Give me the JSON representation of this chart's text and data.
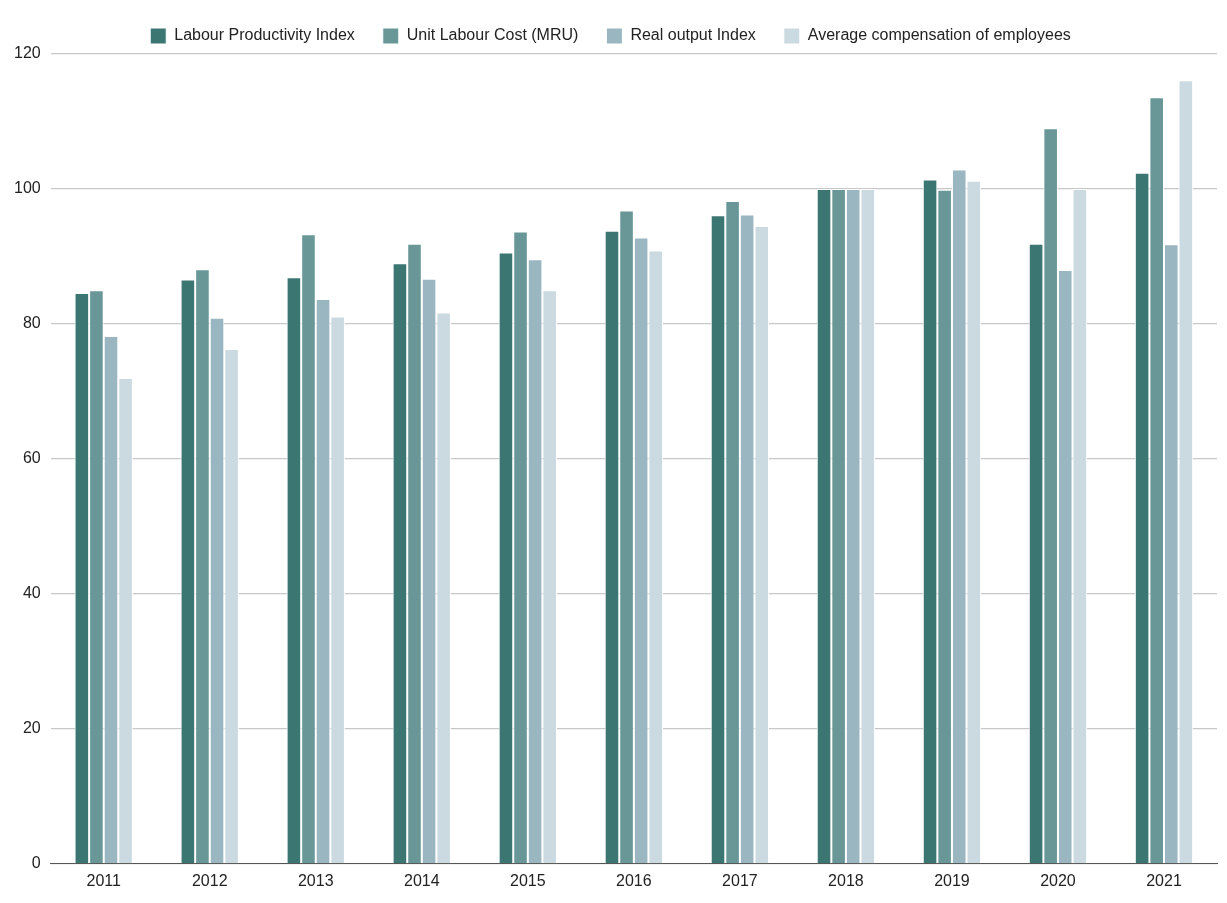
{
  "chart_data": {
    "type": "bar",
    "categories": [
      "2011",
      "2012",
      "2013",
      "2014",
      "2015",
      "2016",
      "2017",
      "2018",
      "2019",
      "2020",
      "2021"
    ],
    "series": [
      {
        "name": "Labour Productivity Index",
        "color": "#3b7672",
        "values": [
          84.6,
          86.6,
          86.9,
          89.0,
          90.6,
          93.8,
          96.1,
          100,
          101.4,
          91.9,
          102.4
        ]
      },
      {
        "name": "Unit Labour Cost (MRU)",
        "color": "#699797",
        "values": [
          85.0,
          88.1,
          93.3,
          91.9,
          93.7,
          96.8,
          98.2,
          100,
          99.9,
          109.0,
          113.6
        ]
      },
      {
        "name": "Real output Index",
        "color": "#9ab6c1",
        "values": [
          78.2,
          80.9,
          83.7,
          86.7,
          89.6,
          92.8,
          96.2,
          100,
          102.9,
          88.0,
          91.8
        ]
      },
      {
        "name": "Average compensation of employees",
        "color": "#cbdae1",
        "values": [
          72.0,
          76.3,
          81.1,
          81.7,
          85.0,
          90.9,
          94.5,
          100,
          101.2,
          100,
          116.1
        ]
      }
    ],
    "ylim": [
      0,
      120
    ],
    "yticks": [
      0,
      20,
      40,
      60,
      80,
      100,
      120
    ],
    "grid": "y",
    "legend": "top"
  }
}
